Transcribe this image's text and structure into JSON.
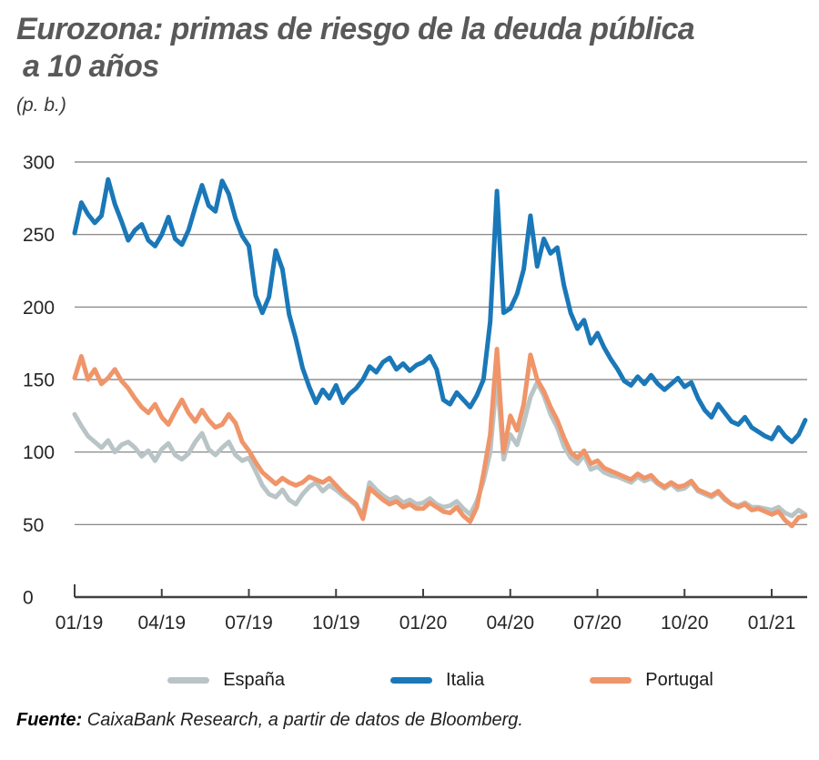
{
  "header": {
    "title_line1": "Eurozona: primas de riesgo de la deuda pública",
    "title_line2": "a 10 años",
    "unit": "(p. b.)"
  },
  "footer": {
    "source_label": "Fuente:",
    "source_text": " CaixaBank Research, a partir de datos de Bloomberg."
  },
  "legend": {
    "position": "bottom",
    "items": [
      {
        "label": "España",
        "color": "#b9c4c6"
      },
      {
        "label": "Italia",
        "color": "#1a78b8"
      },
      {
        "label": "Portugal",
        "color": "#ef9569"
      }
    ]
  },
  "chart_data": {
    "type": "line",
    "title": "Eurozona: primas de riesgo de la deuda pública a 10 años",
    "ylabel": "(p. b.)",
    "xlabel": "",
    "grid": "horizontal-only",
    "gridline_color": "#7a7a7a",
    "axis_color": "#404040",
    "tick_text_color": "#262626",
    "ylim": [
      0,
      300
    ],
    "y_ticks": [
      0,
      50,
      100,
      150,
      200,
      250,
      300
    ],
    "x_unit": "months since 2019-01",
    "x_range_months": [
      0,
      25.2
    ],
    "x_step_months": 0.2308,
    "x_ticks": {
      "positions_months": [
        0,
        3,
        6,
        9,
        12,
        15,
        18,
        21,
        24
      ],
      "labels": [
        "01/19",
        "04/19",
        "07/19",
        "10/19",
        "01/20",
        "04/20",
        "07/20",
        "10/20",
        "01/21"
      ]
    },
    "sampling": "weekly values, Jan 2019 - early Feb 2021",
    "series": [
      {
        "name": "España",
        "color": "#b9c4c6",
        "values": [
          126,
          118,
          111,
          107,
          103,
          108,
          100,
          105,
          107,
          103,
          97,
          101,
          94,
          102,
          106,
          98,
          95,
          99,
          107,
          113,
          102,
          98,
          103,
          107,
          98,
          94,
          96,
          87,
          77,
          71,
          69,
          74,
          67,
          64,
          71,
          76,
          79,
          73,
          77,
          74,
          70,
          67,
          63,
          57,
          79,
          74,
          70,
          67,
          69,
          65,
          67,
          64,
          65,
          68,
          64,
          62,
          63,
          66,
          61,
          57,
          66,
          80,
          100,
          152,
          95,
          112,
          105,
          120,
          138,
          148,
          139,
          126,
          117,
          104,
          96,
          92,
          98,
          88,
          90,
          86,
          84,
          83,
          81,
          79,
          83,
          80,
          82,
          78,
          75,
          78,
          74,
          75,
          79,
          73,
          71,
          69,
          72,
          67,
          64,
          63,
          65,
          62,
          62,
          61,
          60,
          62,
          58,
          56,
          60,
          57
        ]
      },
      {
        "name": "Italia",
        "color": "#1a78b8",
        "values": [
          251,
          272,
          264,
          258,
          263,
          288,
          271,
          259,
          246,
          253,
          257,
          246,
          242,
          250,
          262,
          247,
          243,
          253,
          269,
          284,
          270,
          266,
          287,
          278,
          261,
          249,
          242,
          208,
          196,
          207,
          239,
          226,
          195,
          178,
          158,
          145,
          134,
          143,
          137,
          146,
          134,
          140,
          144,
          150,
          159,
          155,
          162,
          165,
          157,
          161,
          156,
          160,
          162,
          166,
          157,
          136,
          133,
          141,
          136,
          131,
          139,
          150,
          190,
          280,
          196,
          199,
          209,
          226,
          263,
          228,
          247,
          237,
          241,
          215,
          196,
          185,
          191,
          175,
          182,
          172,
          164,
          157,
          149,
          146,
          152,
          147,
          153,
          147,
          143,
          147,
          151,
          145,
          148,
          137,
          129,
          124,
          133,
          127,
          121,
          119,
          124,
          117,
          114,
          111,
          109,
          117,
          111,
          107,
          112,
          122
        ]
      },
      {
        "name": "Portugal",
        "color": "#ef9569",
        "values": [
          151,
          166,
          150,
          157,
          147,
          151,
          157,
          149,
          144,
          137,
          131,
          127,
          133,
          124,
          119,
          128,
          136,
          127,
          121,
          129,
          122,
          117,
          119,
          126,
          120,
          107,
          101,
          93,
          86,
          82,
          78,
          82,
          79,
          77,
          79,
          83,
          81,
          79,
          82,
          77,
          72,
          68,
          64,
          54,
          75,
          71,
          67,
          64,
          66,
          62,
          64,
          61,
          61,
          65,
          62,
          59,
          58,
          62,
          56,
          52,
          62,
          85,
          112,
          171,
          100,
          125,
          115,
          133,
          167,
          150,
          142,
          131,
          122,
          110,
          100,
          96,
          101,
          92,
          94,
          89,
          87,
          85,
          83,
          81,
          85,
          82,
          84,
          79,
          76,
          79,
          76,
          77,
          80,
          74,
          72,
          70,
          73,
          68,
          64,
          62,
          64,
          60,
          61,
          59,
          57,
          59,
          53,
          49,
          55,
          56
        ]
      }
    ]
  }
}
